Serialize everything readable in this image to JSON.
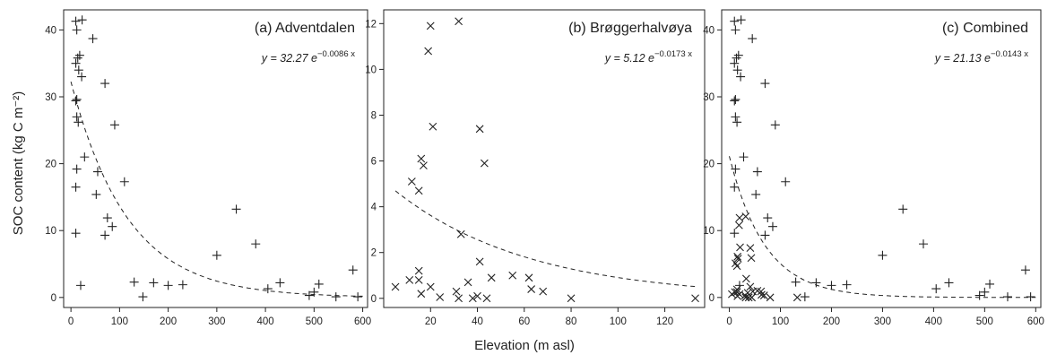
{
  "figure": {
    "ylabel": "SOC content (kg C m⁻²)",
    "xlabel": "Elevation (m asl)"
  },
  "chart_data": [
    {
      "type": "scatter",
      "title": "(a) Adventdalen",
      "equation": {
        "prefix": "y = 32.27 e",
        "exponent": "−0.0086 x"
      },
      "fit": {
        "a": 32.27,
        "b": -0.0086,
        "from": 0,
        "to": 600
      },
      "xlim": [
        -15,
        610
      ],
      "ylim": [
        -1.5,
        43
      ],
      "xticks": [
        "0",
        "100",
        "200",
        "300",
        "400",
        "500",
        "600"
      ],
      "yticks": [
        "0",
        "10",
        "20",
        "30",
        "40"
      ],
      "grid": false,
      "series": [
        {
          "marker": "plus",
          "x": [
            10,
            23,
            45,
            12,
            14,
            18,
            10,
            16,
            22,
            70,
            12,
            90,
            10,
            12,
            15,
            28,
            55,
            12,
            10,
            110,
            52,
            75,
            10,
            85,
            70,
            20,
            300,
            340,
            380,
            130,
            170,
            200,
            230,
            148,
            405,
            430,
            490,
            510,
            580,
            590,
            545,
            500
          ],
          "y": [
            41.3,
            41.5,
            38.7,
            40,
            35.8,
            36.2,
            35,
            34,
            33,
            32,
            29.6,
            25.8,
            29.4,
            27,
            26.2,
            21,
            18.8,
            19.2,
            16.5,
            17.3,
            15.4,
            11.9,
            9.6,
            10.6,
            9.3,
            1.8,
            6.3,
            13.2,
            8.0,
            2.3,
            2.2,
            1.8,
            1.9,
            0.1,
            1.3,
            2.2,
            0.3,
            2.0,
            4.1,
            0.1,
            0.1,
            0.8
          ]
        }
      ]
    },
    {
      "type": "scatter",
      "title": "(b) Brøggerhalvøya",
      "equation": {
        "prefix": "y = 5.12 e",
        "exponent": "−0.0173 x"
      },
      "fit": {
        "a": 5.12,
        "b": -0.0173,
        "from": 5,
        "to": 133
      },
      "xlim": [
        0,
        137
      ],
      "ylim": [
        -0.4,
        12.6
      ],
      "xticks": [
        "20",
        "40",
        "60",
        "80",
        "100",
        "120"
      ],
      "yticks": [
        "0",
        "2",
        "4",
        "6",
        "8",
        "10",
        "12"
      ],
      "grid": false,
      "series": [
        {
          "marker": "cross",
          "x": [
            20,
            32,
            19,
            21,
            41,
            43,
            16,
            17,
            12,
            15,
            15,
            33,
            41,
            5,
            11,
            15,
            16,
            20,
            31,
            32,
            36,
            38,
            44,
            46,
            55,
            62,
            63,
            68,
            80,
            133,
            40,
            24
          ],
          "y": [
            11.9,
            12.1,
            10.8,
            7.5,
            7.4,
            5.9,
            6.1,
            5.8,
            5.1,
            4.7,
            1.2,
            2.8,
            1.6,
            0.5,
            0.8,
            0.8,
            0.2,
            0.5,
            0.3,
            0,
            0.7,
            0,
            0,
            0.9,
            1.0,
            0.9,
            0.4,
            0.3,
            0,
            0,
            0.1,
            0.05
          ]
        }
      ]
    },
    {
      "type": "scatter",
      "title": "(c) Combined",
      "equation": {
        "prefix": "y = 21.13 e",
        "exponent": "−0.0143 x"
      },
      "fit": {
        "a": 21.13,
        "b": -0.0143,
        "from": 0,
        "to": 600
      },
      "xlim": [
        -15,
        610
      ],
      "ylim": [
        -1.5,
        43
      ],
      "xticks": [
        "0",
        "100",
        "200",
        "300",
        "400",
        "500",
        "600"
      ],
      "yticks": [
        "0",
        "10",
        "20",
        "30",
        "40"
      ],
      "grid": false,
      "series": [
        {
          "marker": "plus",
          "x": [
            10,
            23,
            45,
            12,
            14,
            18,
            10,
            16,
            22,
            70,
            12,
            90,
            10,
            12,
            15,
            28,
            55,
            12,
            10,
            110,
            52,
            75,
            10,
            85,
            70,
            20,
            300,
            340,
            380,
            130,
            170,
            200,
            230,
            148,
            405,
            430,
            490,
            510,
            580,
            590,
            545,
            500
          ],
          "y": [
            41.3,
            41.5,
            38.7,
            40,
            35.8,
            36.2,
            35,
            34,
            33,
            32,
            29.6,
            25.8,
            29.4,
            27,
            26.2,
            21,
            18.8,
            19.2,
            16.5,
            17.3,
            15.4,
            11.9,
            9.6,
            10.6,
            9.3,
            1.8,
            6.3,
            13.2,
            8.0,
            2.3,
            2.2,
            1.8,
            1.9,
            0.1,
            1.3,
            2.2,
            0.3,
            2.0,
            4.1,
            0.1,
            0.1,
            0.8
          ]
        },
        {
          "marker": "cross",
          "x": [
            20,
            32,
            19,
            21,
            41,
            43,
            16,
            17,
            12,
            15,
            15,
            33,
            41,
            5,
            11,
            15,
            16,
            20,
            31,
            32,
            36,
            38,
            44,
            46,
            55,
            62,
            63,
            68,
            80,
            133
          ],
          "y": [
            11.9,
            12.1,
            10.8,
            7.5,
            7.4,
            5.9,
            6.1,
            5.8,
            5.1,
            4.7,
            1.2,
            2.8,
            1.6,
            0.5,
            0.8,
            0.8,
            0.2,
            0.5,
            0.3,
            0,
            0.7,
            0,
            0,
            0.9,
            1.0,
            0.9,
            0.4,
            0.3,
            0,
            0
          ]
        }
      ]
    }
  ]
}
